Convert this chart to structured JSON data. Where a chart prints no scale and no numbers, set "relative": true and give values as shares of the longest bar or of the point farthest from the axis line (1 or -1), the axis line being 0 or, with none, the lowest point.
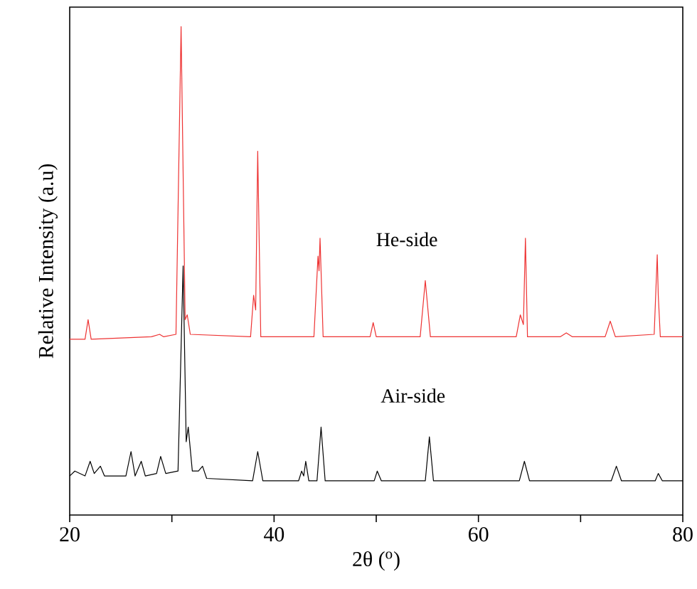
{
  "chart_data": {
    "type": "line",
    "relative": true,
    "xlabel": "2θ ($^{o}$)",
    "ylabel": "Relative Intensity (a.u)",
    "xlim": [
      20,
      80
    ],
    "xticks": [
      20,
      {
        "value": 30,
        "label": null
      },
      40,
      {
        "value": 50,
        "label": null
      },
      60,
      {
        "value": 70,
        "label": null
      },
      80
    ],
    "marker": "none",
    "line_style": "solid",
    "grid": false,
    "legend": false,
    "series": [
      {
        "name": "He-side",
        "color": "#ee3333",
        "x": [
          20,
          21.5,
          21.8,
          22.1,
          28,
          28.8,
          29.2,
          30.4,
          30.9,
          31.3,
          31.5,
          31.8,
          37.7,
          38.0,
          38.2,
          38.4,
          38.7,
          43.9,
          44.3,
          44.4,
          44.5,
          44.8,
          49.4,
          49.7,
          50.0,
          54.3,
          54.8,
          55.3,
          63.7,
          64.1,
          64.4,
          64.6,
          64.8,
          68.0,
          68.6,
          69.2,
          72.4,
          72.9,
          73.4,
          77.2,
          77.5,
          77.6,
          77.8,
          80
        ],
        "values": [
          0.36,
          0.36,
          0.4,
          0.36,
          0.365,
          0.37,
          0.365,
          0.37,
          1.0,
          0.4,
          0.41,
          0.37,
          0.365,
          0.45,
          0.42,
          0.745,
          0.365,
          0.365,
          0.53,
          0.5,
          0.567,
          0.365,
          0.365,
          0.394,
          0.365,
          0.365,
          0.48,
          0.365,
          0.365,
          0.41,
          0.39,
          0.567,
          0.365,
          0.365,
          0.373,
          0.365,
          0.365,
          0.397,
          0.365,
          0.37,
          0.533,
          0.45,
          0.365,
          0.365
        ]
      },
      {
        "name": "Air-side",
        "color": "#000000",
        "x": [
          20,
          20.5,
          21.5,
          22.0,
          22.4,
          23.0,
          23.4,
          25.5,
          26.0,
          26.4,
          27.0,
          27.4,
          28.5,
          28.9,
          29.4,
          30.6,
          31.1,
          31.4,
          31.6,
          32.0,
          32.6,
          33.0,
          33.4,
          37.9,
          38.4,
          38.9,
          42.4,
          42.7,
          42.9,
          43.1,
          43.4,
          44.2,
          44.6,
          45.0,
          49.8,
          50.1,
          50.5,
          54.8,
          55.2,
          55.6,
          64.0,
          64.5,
          65.0,
          73.0,
          73.5,
          74.0,
          77.3,
          77.6,
          78.0,
          80
        ],
        "values": [
          0.08,
          0.09,
          0.08,
          0.11,
          0.085,
          0.1,
          0.08,
          0.08,
          0.13,
          0.08,
          0.11,
          0.08,
          0.085,
          0.12,
          0.085,
          0.09,
          0.51,
          0.15,
          0.18,
          0.09,
          0.09,
          0.1,
          0.075,
          0.07,
          0.13,
          0.07,
          0.07,
          0.09,
          0.08,
          0.11,
          0.07,
          0.07,
          0.18,
          0.07,
          0.07,
          0.09,
          0.07,
          0.07,
          0.16,
          0.07,
          0.07,
          0.11,
          0.07,
          0.07,
          0.1,
          0.07,
          0.07,
          0.085,
          0.07,
          0.07
        ]
      }
    ]
  }
}
